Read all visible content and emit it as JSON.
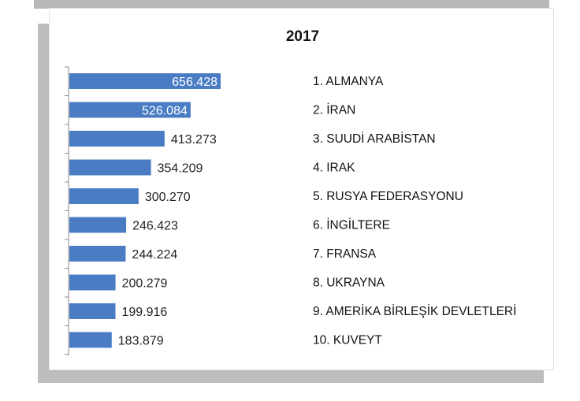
{
  "chart_data": {
    "type": "bar",
    "orientation": "horizontal",
    "title": "2017",
    "categories": [
      "1. ALMANYA",
      "2. İRAN",
      "3. SUUDİ ARABİSTAN",
      "4. IRAK",
      "5. RUSYA FEDERASYONU",
      "6. İNGİLTERE",
      "7. FRANSA",
      "8. UKRAYNA",
      "9. AMERİKA BİRLEŞİK DEVLETLERİ",
      "10. KUVEYT"
    ],
    "values": [
      656428,
      526084,
      413273,
      354209,
      300270,
      246423,
      244224,
      200279,
      199916,
      183879
    ],
    "value_labels": [
      "656.428",
      "526.084",
      "413.273",
      "354.209",
      "300.270",
      "246.423",
      "244.224",
      "200.279",
      "199.916",
      "183.879"
    ],
    "xlabel": "",
    "ylabel": "",
    "xlim": [
      0,
      656428
    ],
    "grid": false,
    "legend": "none",
    "bar_color": "#4a7cc4"
  }
}
